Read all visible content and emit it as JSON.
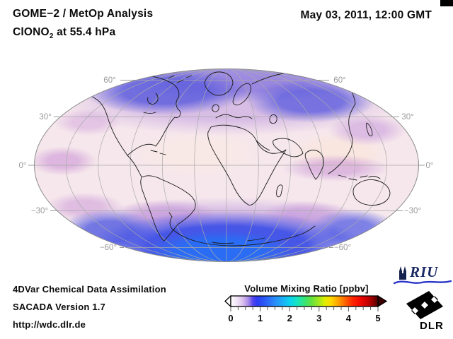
{
  "header": {
    "title_line1": "GOME−2 / MetOp Analysis",
    "species": "ClONO",
    "species_subscript": "2",
    "level_suffix": " at 55.4 hPa",
    "datetime": "May 03, 2011, 12:00 GMT"
  },
  "map": {
    "labels": {
      "left": [
        "60°",
        "30°",
        "0°",
        "−30°",
        "−60°"
      ],
      "right": [
        "60°",
        "30°",
        "0°",
        "−30°",
        "−60°"
      ]
    },
    "colors": {
      "background": "#f6e7ec",
      "mid_latitude_purple": "#c896d7",
      "north_polar_blue": "#6b6bdc",
      "south_polar_blue": "#3a5ee6",
      "graticule": "#a9a9a9",
      "coastline": "#1b1b1b",
      "label_gray": "#999999"
    }
  },
  "colorbar": {
    "title": "Volume Mixing Ratio [ppbv]",
    "tick_labels": [
      "0",
      "1",
      "2",
      "3",
      "4",
      "5"
    ],
    "range_min": 0,
    "range_max": 5,
    "palette": [
      "#ffffff",
      "#dcc2ee",
      "#a98ae8",
      "#2b3cf2",
      "#2a60f6",
      "#2b8cf8",
      "#0cd2f0",
      "#16e4c2",
      "#35e47a",
      "#a5e81e",
      "#e0ee00",
      "#ffd800",
      "#ffa200",
      "#ff6000",
      "#ff2400",
      "#c80000",
      "#4c0000"
    ]
  },
  "footer": {
    "line1": "4DVar Chemical Data Assimilation",
    "line2": "SACADA Version 1.7",
    "line3": "http://wdc.dlr.de"
  },
  "logos": {
    "riu": "RIU",
    "dlr": "DLR"
  },
  "chart_data": {
    "type": "heatmap",
    "title": "GOME−2 / MetOp Analysis — ClONO2 at 55.4 hPa",
    "datetime": "May 03, 2011, 12:00 GMT",
    "projection": "mollweide",
    "colorbar": {
      "label": "Volume Mixing Ratio [ppbv]",
      "min": 0,
      "max": 5,
      "ticks": [
        0,
        1,
        2,
        3,
        4,
        5
      ]
    },
    "graticule": {
      "parallels_deg": [
        60,
        30,
        0,
        -30,
        -60
      ],
      "meridian_step_deg": 30
    },
    "field_by_latitude_band": [
      {
        "band": "60N–90N",
        "approx_ppbv": 0.9,
        "appearance": "blue band over Arctic / Canada / Siberia"
      },
      {
        "band": "30N–60N",
        "approx_ppbv": 0.35,
        "appearance": "pale purple patches"
      },
      {
        "band": "0–30N",
        "approx_ppbv": 0.15,
        "appearance": "pale pink, low values"
      },
      {
        "band": "30S–0",
        "approx_ppbv": 0.2,
        "appearance": "pale pink with purple equatorial patches"
      },
      {
        "band": "60S–30S",
        "approx_ppbv": 0.45,
        "appearance": "purple collar"
      },
      {
        "band": "90S–60S",
        "approx_ppbv": 1.1,
        "appearance": "strong blue over Antarctica"
      }
    ]
  }
}
